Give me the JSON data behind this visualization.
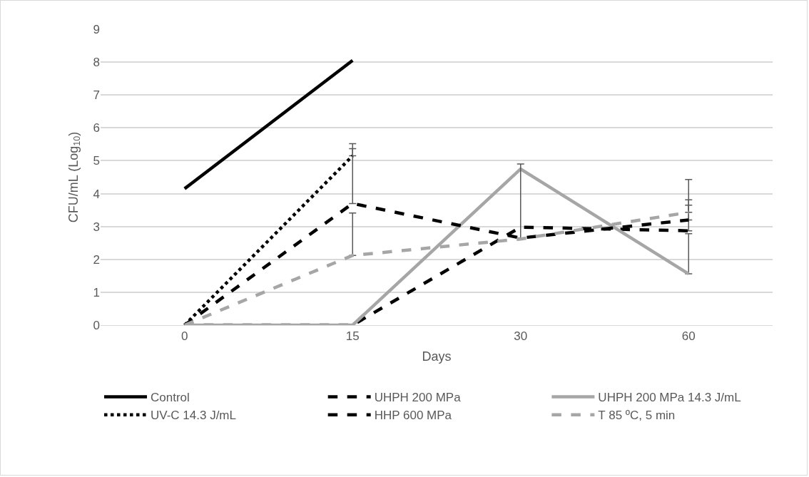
{
  "chart_data": {
    "type": "line",
    "xlabel": "Days",
    "ylabel": "CFU/mL (Log$_{10}$)",
    "categories": [
      "0",
      "15",
      "30",
      "60"
    ],
    "ylim": [
      0,
      9
    ],
    "yticks": [
      0,
      1,
      2,
      3,
      4,
      5,
      6,
      7,
      8,
      9
    ],
    "grid": "y",
    "legend": "bottom",
    "marker": "none",
    "series": [
      {
        "name": "Control",
        "color": "#000000",
        "line_style": "solid",
        "values": [
          4.15,
          8.05,
          null,
          null
        ]
      },
      {
        "name": "UHPH 200 MPa",
        "color": "#000000",
        "line_style": "dashed",
        "values": [
          0,
          0,
          2.98,
          2.87
        ],
        "errors": [
          null,
          null,
          null,
          [
            2.87,
            4.43
          ]
        ]
      },
      {
        "name": "UHPH 200 MPa 14.3 J/mL",
        "color": "#a6a6a6",
        "line_style": "solid",
        "values": [
          0,
          0,
          4.75,
          1.56
        ],
        "errors": [
          null,
          null,
          null,
          [
            1.56,
            2.78
          ]
        ]
      },
      {
        "name": "UV-C 14.3 J/mL",
        "color": "#000000",
        "line_style": "dotted",
        "values": [
          0,
          5.15,
          null,
          null
        ],
        "errors": [
          null,
          [
            5.15,
            5.52
          ],
          null,
          null
        ]
      },
      {
        "name": "HHP 600 MPa",
        "color": "#000000",
        "line_style": "dashed",
        "values": [
          0,
          3.7,
          2.65,
          3.2
        ],
        "errors": [
          null,
          [
            3.7,
            5.37
          ],
          [
            2.65,
            4.9
          ],
          [
            3.2,
            3.65
          ]
        ]
      },
      {
        "name": "T 85 ºC, 5 min",
        "color": "#a6a6a6",
        "line_style": "dashed",
        "values": [
          0,
          2.12,
          2.62,
          3.43
        ],
        "errors": [
          null,
          [
            2.12,
            3.41
          ],
          null,
          [
            3.43,
            3.81
          ]
        ]
      }
    ]
  }
}
